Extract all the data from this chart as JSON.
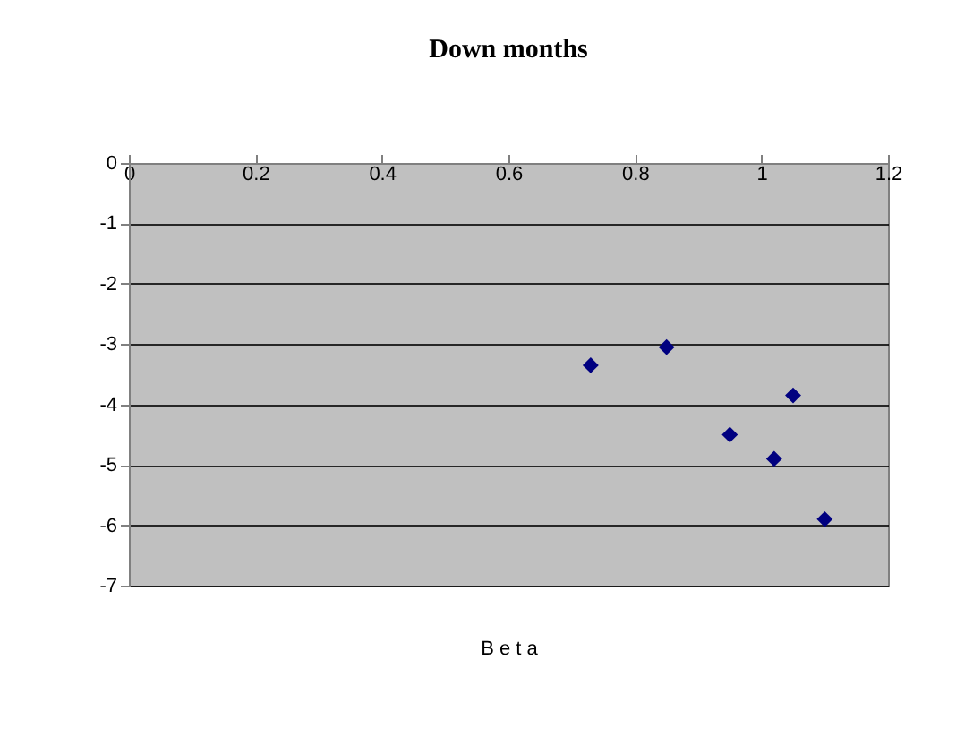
{
  "chart_data": {
    "type": "scatter",
    "title": "Down months",
    "xlabel": "B e t a",
    "x": [
      0.73,
      0.85,
      1.05,
      0.95,
      1.02,
      1.1
    ],
    "series": [
      {
        "color": "#000080",
        "values": [
          -3.35,
          -3.05,
          -3.85,
          -4.5,
          -4.9,
          -5.9
        ]
      }
    ],
    "xlim": [
      0,
      1.2
    ],
    "xticks": [
      0,
      0.2,
      0.4,
      0.6,
      0.8,
      1,
      1.2
    ],
    "ylim": [
      -7,
      0
    ],
    "yticks": [
      0,
      -1,
      -2,
      -3,
      -4,
      -5,
      -6,
      -7
    ],
    "grid": "y",
    "marker": "diamond"
  }
}
